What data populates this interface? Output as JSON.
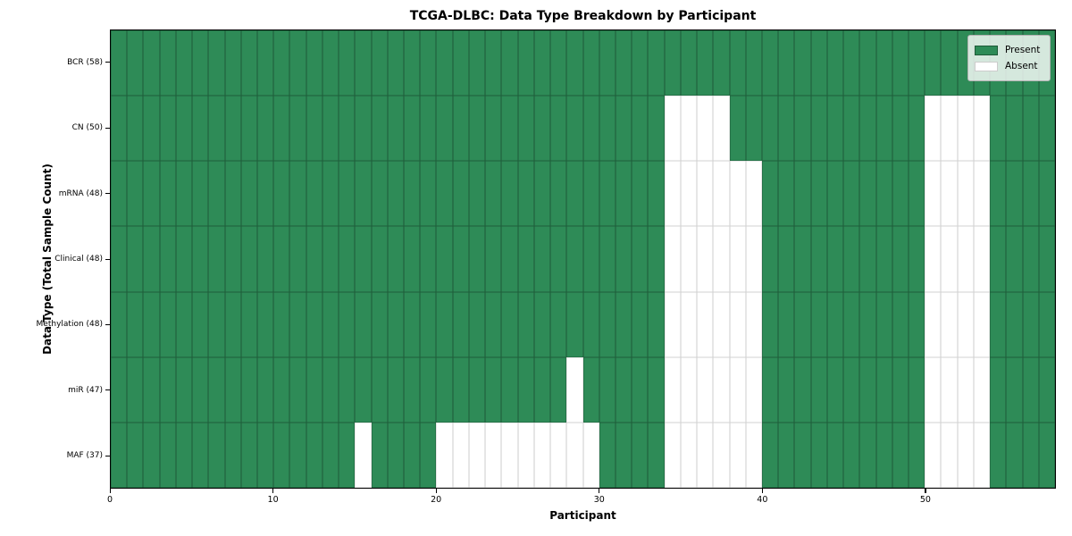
{
  "title": "TCGA-DLBC: Data Type Breakdown by Participant",
  "xlabel": "Participant",
  "ylabel": "Data Type (Total Sample Count)",
  "legend": {
    "present_label": "Present",
    "absent_label": "Absent"
  },
  "colors": {
    "present": "#2E8B57",
    "absent": "#FFFFFF",
    "cell_edge": "rgba(0,0,0,0.32)",
    "plot_border": "#000000",
    "legend_border": "#b3b3b3"
  },
  "chart_data": {
    "type": "heatmap",
    "title": "TCGA-DLBC: Data Type Breakdown by Participant",
    "xlabel": "Participant",
    "ylabel": "Data Type (Total Sample Count)",
    "n_participants": 58,
    "x_ticks": [
      0,
      10,
      20,
      30,
      40,
      50
    ],
    "x_range": [
      0,
      58
    ],
    "grid": "cell-edges",
    "legend_position": "upper-right",
    "legend_entries": [
      "Present",
      "Absent"
    ],
    "value_meaning": {
      "present": 1,
      "absent": 0
    },
    "rows": [
      {
        "label": "BCR (58)",
        "data_type": "BCR",
        "total_samples": 58,
        "absent_participants": []
      },
      {
        "label": "CN (50)",
        "data_type": "CN",
        "total_samples": 50,
        "absent_participants": [
          34,
          35,
          36,
          37,
          50,
          51,
          52,
          53
        ]
      },
      {
        "label": "mRNA (48)",
        "data_type": "mRNA",
        "total_samples": 48,
        "absent_participants": [
          34,
          35,
          36,
          37,
          38,
          39,
          50,
          51,
          52,
          53
        ]
      },
      {
        "label": "Clinical (48)",
        "data_type": "Clinical",
        "total_samples": 48,
        "absent_participants": [
          34,
          35,
          36,
          37,
          38,
          39,
          50,
          51,
          52,
          53
        ]
      },
      {
        "label": "Methylation (48)",
        "data_type": "Methylation",
        "total_samples": 48,
        "absent_participants": [
          34,
          35,
          36,
          37,
          38,
          39,
          50,
          51,
          52,
          53
        ]
      },
      {
        "label": "miR (47)",
        "data_type": "miR",
        "total_samples": 47,
        "absent_participants": [
          28,
          34,
          35,
          36,
          37,
          38,
          39,
          50,
          51,
          52,
          53
        ]
      },
      {
        "label": "MAF (37)",
        "data_type": "MAF",
        "total_samples": 37,
        "absent_participants": [
          15,
          20,
          21,
          22,
          23,
          24,
          25,
          26,
          27,
          28,
          29,
          34,
          35,
          36,
          37,
          38,
          39,
          50,
          51,
          52,
          53
        ]
      }
    ]
  }
}
